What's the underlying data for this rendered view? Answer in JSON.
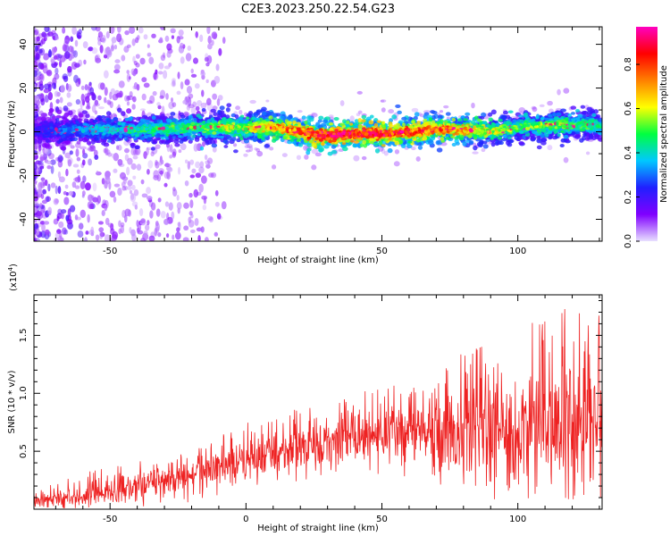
{
  "title": "C2E3.2023.250.22.54.G23",
  "chart_data": [
    {
      "type": "heatmap",
      "xlabel": "Height of straight line (km)",
      "ylabel": "Frequency (Hz)",
      "xlim": [
        -78,
        131
      ],
      "ylim": [
        -50,
        48
      ],
      "x_ticks": [
        -50,
        0,
        50,
        100
      ],
      "x_tick_labels": [
        "-50",
        "0",
        "50",
        "100"
      ],
      "y_ticks": [
        -40,
        -20,
        0,
        20,
        40
      ],
      "y_tick_labels": [
        "-40",
        "-20",
        "0",
        "20",
        "40"
      ],
      "colorbar": {
        "label": "Normalized spectral amplitude",
        "range": [
          0,
          0.97
        ],
        "ticks": [
          0.0,
          0.2,
          0.4,
          0.6,
          0.8
        ],
        "tick_labels": [
          "0.0",
          "0.2",
          "0.4",
          "0.6",
          "0.8"
        ],
        "colors": [
          "#e8e0ff",
          "#8000ff",
          "#2020ff",
          "#00c8ff",
          "#00ff40",
          "#ffff00",
          "#ff8000",
          "#ff0000",
          "#ff00c0"
        ]
      },
      "ridge_frequency": {
        "x": [
          -78,
          -60,
          -40,
          -20,
          0,
          10,
          20,
          30,
          40,
          50,
          60,
          70,
          80,
          90,
          100,
          110,
          120,
          131
        ],
        "y": [
          0,
          1,
          1,
          2,
          2,
          2,
          0,
          -2,
          -1,
          -1,
          0,
          1,
          1,
          0,
          2,
          3,
          3,
          3
        ]
      },
      "ridge_amplitude": {
        "x": [
          -78,
          -60,
          -40,
          -20,
          0,
          10,
          20,
          30,
          40,
          50,
          60,
          70,
          80,
          90,
          100,
          110,
          120,
          131
        ],
        "y": [
          0.22,
          0.35,
          0.45,
          0.5,
          0.6,
          0.7,
          0.8,
          0.88,
          0.9,
          0.85,
          0.8,
          0.78,
          0.72,
          0.6,
          0.5,
          0.55,
          0.5,
          0.45
        ]
      },
      "grid": false
    },
    {
      "type": "line",
      "xlabel": "Height of straight line (km)",
      "ylabel": "SNR (10 * v/v)",
      "y_multiplier_label": "(x10",
      "y_multiplier_exp": "4",
      "y_multiplier_close": ")",
      "xlim": [
        -78,
        131
      ],
      "ylim": [
        0,
        18500
      ],
      "x_ticks": [
        -50,
        0,
        50,
        100
      ],
      "x_tick_labels": [
        "-50",
        "0",
        "50",
        "100"
      ],
      "y_ticks": [
        5000,
        10000,
        15000
      ],
      "y_tick_labels": [
        "0.5",
        "1.0",
        "1.5"
      ],
      "series": [
        {
          "color": "#ee2222",
          "envelope": {
            "x": [
              -78,
              -60,
              -40,
              -20,
              0,
              20,
              40,
              60,
              80,
              100,
              120,
              131
            ],
            "mean": [
              700,
              1200,
              2000,
              3000,
              4200,
              5300,
              6200,
              6600,
              6800,
              7000,
              7200,
              7300
            ],
            "max": [
              1500,
              3200,
              4200,
              5000,
              7500,
              8800,
              10000,
              11500,
              14500,
              15500,
              18000,
              17000
            ],
            "min": [
              100,
              200,
              300,
              500,
              1000,
              2000,
              3500,
              2500,
              2000,
              1500,
              800,
              500
            ]
          }
        }
      ],
      "grid": false
    }
  ]
}
